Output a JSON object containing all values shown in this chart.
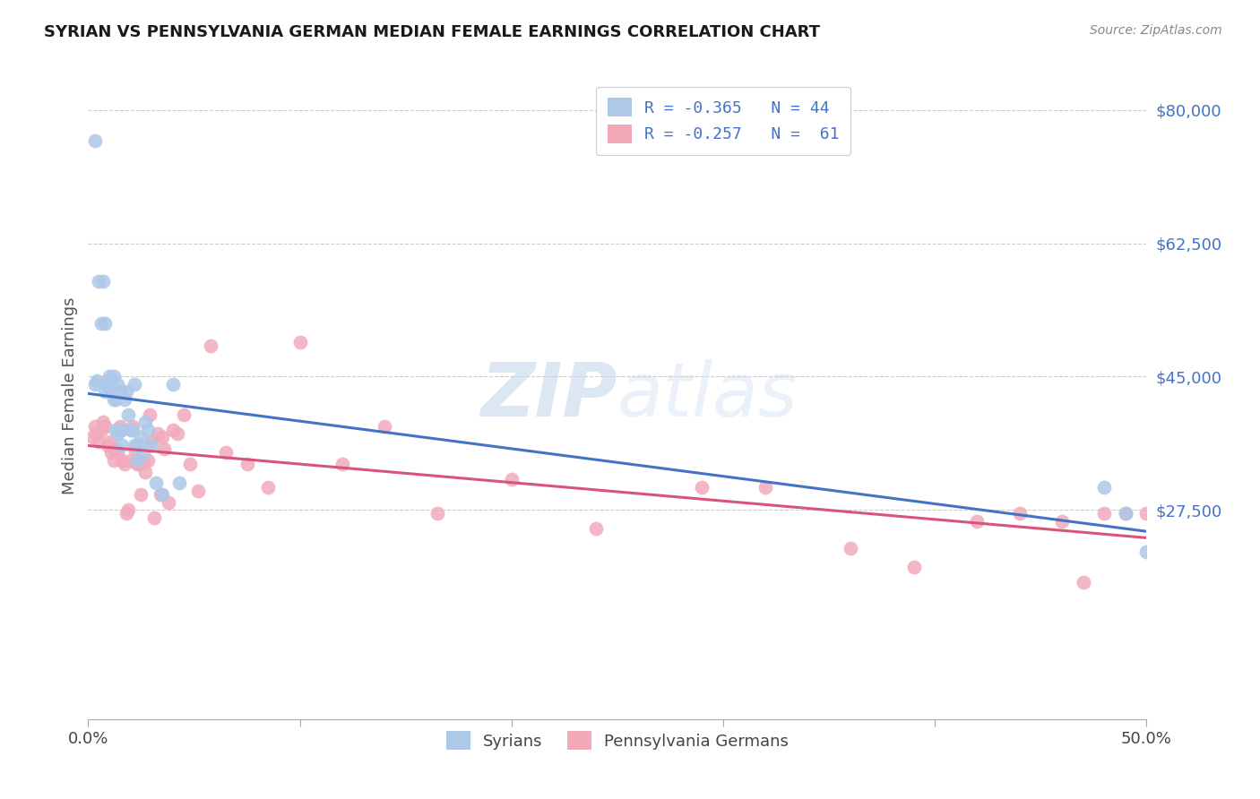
{
  "title": "SYRIAN VS PENNSYLVANIA GERMAN MEDIAN FEMALE EARNINGS CORRELATION CHART",
  "source": "Source: ZipAtlas.com",
  "ylabel": "Median Female Earnings",
  "yticks": [
    0,
    27500,
    45000,
    62500,
    80000
  ],
  "ytick_labels": [
    "",
    "$27,500",
    "$45,000",
    "$62,500",
    "$80,000"
  ],
  "xlim": [
    0.0,
    0.5
  ],
  "ylim": [
    0,
    85000
  ],
  "legend1_label": "R = -0.365   N = 44",
  "legend2_label": "R = -0.257   N =  61",
  "color_syrian": "#adc8e8",
  "color_pagerman": "#f2aabb",
  "color_line_syrian": "#4472c4",
  "color_line_pagerman": "#d9547a",
  "watermark_zip": "ZIP",
  "watermark_atlas": "atlas",
  "syrians_x": [
    0.003,
    0.003,
    0.004,
    0.005,
    0.006,
    0.007,
    0.008,
    0.008,
    0.009,
    0.009,
    0.01,
    0.01,
    0.011,
    0.012,
    0.012,
    0.013,
    0.013,
    0.014,
    0.014,
    0.015,
    0.015,
    0.016,
    0.016,
    0.017,
    0.018,
    0.019,
    0.02,
    0.021,
    0.022,
    0.022,
    0.023,
    0.024,
    0.025,
    0.026,
    0.027,
    0.028,
    0.03,
    0.032,
    0.035,
    0.04,
    0.043,
    0.48,
    0.49,
    0.5
  ],
  "syrians_y": [
    76000,
    44000,
    44500,
    57500,
    52000,
    57500,
    43000,
    52000,
    44000,
    44500,
    45000,
    43500,
    44500,
    45000,
    42000,
    38000,
    42000,
    37500,
    44000,
    43000,
    38000,
    38000,
    36000,
    42000,
    43000,
    40000,
    38000,
    38000,
    36000,
    44000,
    34000,
    36000,
    37000,
    35000,
    39000,
    38000,
    36000,
    31000,
    29500,
    44000,
    31000,
    30500,
    27000,
    22000
  ],
  "pagerman_x": [
    0.002,
    0.003,
    0.004,
    0.005,
    0.006,
    0.007,
    0.008,
    0.009,
    0.01,
    0.011,
    0.012,
    0.013,
    0.014,
    0.015,
    0.016,
    0.017,
    0.018,
    0.019,
    0.02,
    0.021,
    0.022,
    0.023,
    0.024,
    0.025,
    0.026,
    0.027,
    0.028,
    0.029,
    0.03,
    0.031,
    0.033,
    0.034,
    0.035,
    0.036,
    0.038,
    0.04,
    0.042,
    0.045,
    0.048,
    0.052,
    0.058,
    0.065,
    0.075,
    0.085,
    0.1,
    0.12,
    0.14,
    0.165,
    0.2,
    0.24,
    0.29,
    0.32,
    0.36,
    0.39,
    0.42,
    0.44,
    0.46,
    0.47,
    0.48,
    0.49,
    0.5
  ],
  "pagerman_y": [
    37000,
    38500,
    37500,
    36500,
    38000,
    39000,
    38500,
    36000,
    36500,
    35000,
    34000,
    35500,
    35000,
    38500,
    34000,
    33500,
    27000,
    27500,
    34000,
    38500,
    35500,
    33500,
    33500,
    29500,
    34000,
    32500,
    34000,
    40000,
    36500,
    26500,
    37500,
    29500,
    37000,
    35500,
    28500,
    38000,
    37500,
    40000,
    33500,
    30000,
    49000,
    35000,
    33500,
    30500,
    49500,
    33500,
    38500,
    27000,
    31500,
    25000,
    30500,
    30500,
    22500,
    20000,
    26000,
    27000,
    26000,
    18000,
    27000,
    27000,
    27000
  ]
}
